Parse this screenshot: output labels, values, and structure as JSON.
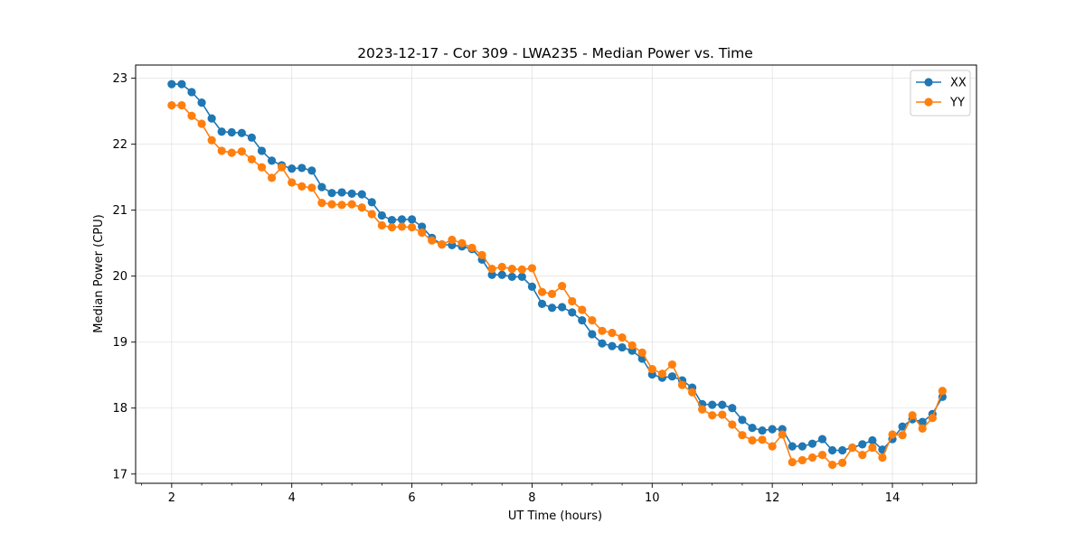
{
  "chart_data": {
    "type": "line",
    "title": "2023-12-17 - Cor 309 - LWA235 - Median Power vs. Time",
    "xlabel": "UT Time (hours)",
    "ylabel": "Median Power (CPU)",
    "xlim": [
      1.4,
      15.4
    ],
    "ylim": [
      16.86,
      23.2
    ],
    "xticks": [
      2,
      4,
      6,
      8,
      10,
      12,
      14
    ],
    "xtick_labels": [
      "2",
      "4",
      "6",
      "8",
      "10",
      "12",
      "14"
    ],
    "yticks": [
      17,
      18,
      19,
      20,
      21,
      22,
      23
    ],
    "ytick_labels": [
      "17",
      "18",
      "19",
      "20",
      "21",
      "22",
      "23"
    ],
    "grid": true,
    "legend_position": "top-right",
    "x": [
      2.0,
      2.167,
      2.333,
      2.5,
      2.667,
      2.833,
      3.0,
      3.167,
      3.333,
      3.5,
      3.667,
      3.833,
      4.0,
      4.167,
      4.333,
      4.5,
      4.667,
      4.833,
      5.0,
      5.167,
      5.333,
      5.5,
      5.667,
      5.833,
      6.0,
      6.167,
      6.333,
      6.5,
      6.667,
      6.833,
      7.0,
      7.167,
      7.333,
      7.5,
      7.667,
      7.833,
      8.0,
      8.167,
      8.333,
      8.5,
      8.667,
      8.833,
      9.0,
      9.167,
      9.333,
      9.5,
      9.667,
      9.833,
      10.0,
      10.167,
      10.333,
      10.5,
      10.667,
      10.833,
      11.0,
      11.167,
      11.333,
      11.5,
      11.667,
      11.833,
      12.0,
      12.167,
      12.333,
      12.5,
      12.667,
      12.833,
      13.0,
      13.167,
      13.333,
      13.5,
      13.667,
      13.833,
      14.0,
      14.167,
      14.333,
      14.5,
      14.667,
      14.833
    ],
    "series": [
      {
        "name": "XX",
        "color": "#1f77b4",
        "values": [
          22.91,
          22.91,
          22.79,
          22.63,
          22.39,
          22.19,
          22.18,
          22.17,
          22.1,
          21.9,
          21.75,
          21.68,
          21.63,
          21.64,
          21.6,
          21.35,
          21.26,
          21.27,
          21.25,
          21.24,
          21.12,
          20.92,
          20.85,
          20.86,
          20.86,
          20.75,
          20.58,
          20.48,
          20.47,
          20.45,
          20.41,
          20.25,
          20.02,
          20.02,
          19.99,
          19.99,
          19.84,
          19.58,
          19.52,
          19.53,
          19.45,
          19.33,
          19.12,
          18.98,
          18.94,
          18.92,
          18.87,
          18.75,
          18.51,
          18.46,
          18.48,
          18.42,
          18.31,
          18.06,
          18.05,
          18.05,
          18.0,
          17.82,
          17.7,
          17.66,
          17.68,
          17.68,
          17.42,
          17.42,
          17.46,
          17.53,
          17.36,
          17.36,
          17.4,
          17.45,
          17.51,
          17.37,
          17.53,
          17.72,
          17.83,
          17.79,
          17.91,
          18.17
        ]
      },
      {
        "name": "YY",
        "color": "#ff7f0e",
        "values": [
          22.59,
          22.59,
          22.43,
          22.31,
          22.06,
          21.9,
          21.87,
          21.89,
          21.77,
          21.65,
          21.49,
          21.65,
          21.42,
          21.36,
          21.34,
          21.11,
          21.09,
          21.08,
          21.09,
          21.04,
          20.94,
          20.77,
          20.74,
          20.75,
          20.74,
          20.66,
          20.54,
          20.48,
          20.55,
          20.5,
          20.43,
          20.32,
          20.11,
          20.14,
          20.11,
          20.1,
          20.12,
          19.76,
          19.73,
          19.85,
          19.62,
          19.49,
          19.33,
          19.17,
          19.14,
          19.07,
          18.95,
          18.84,
          18.59,
          18.52,
          18.66,
          18.35,
          18.24,
          17.98,
          17.89,
          17.9,
          17.75,
          17.59,
          17.51,
          17.52,
          17.42,
          17.6,
          17.18,
          17.21,
          17.25,
          17.29,
          17.14,
          17.17,
          17.4,
          17.29,
          17.4,
          17.25,
          17.6,
          17.59,
          17.89,
          17.69,
          17.85,
          18.26
        ]
      }
    ]
  }
}
